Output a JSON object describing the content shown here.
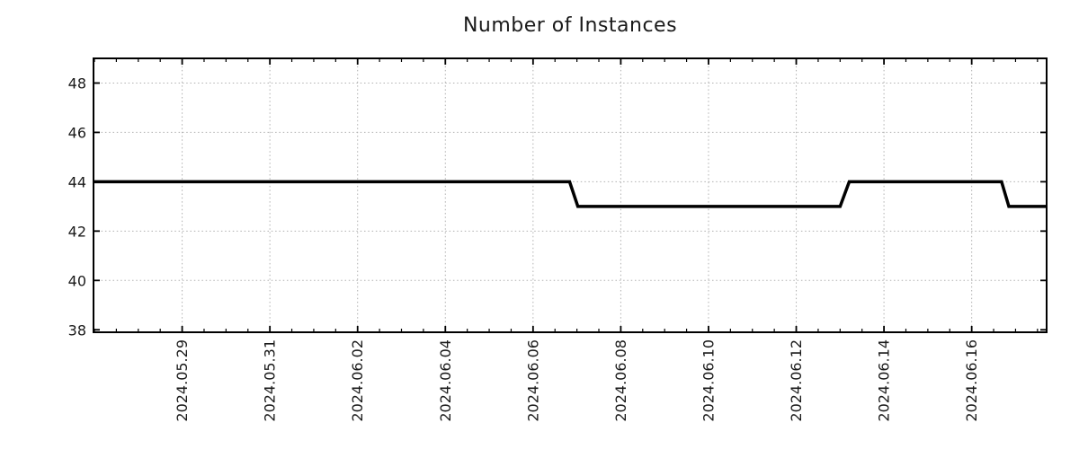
{
  "chart_data": {
    "type": "line",
    "title": "Number of Instances",
    "xlabel": "",
    "ylabel": "",
    "legend": null,
    "grid": "dotted",
    "colors": {
      "line": "#000000",
      "grid": "#b0b0b0",
      "axis": "#000000",
      "text": "#1a1a1a",
      "background": "#ffffff"
    },
    "ylim": [
      37.9,
      49.0
    ],
    "y_ticks": [
      38,
      40,
      42,
      44,
      46,
      48
    ],
    "y_gridlines": [
      40,
      42,
      44,
      46,
      48
    ],
    "xlim": [
      "2024-05-26T23:30",
      "2024-06-17T17:00"
    ],
    "x_minor_tick_hours": 12,
    "x_ticks": [
      {
        "t": "2024-05-29T00:00",
        "label": "2024.05.29"
      },
      {
        "t": "2024-05-31T00:00",
        "label": "2024.05.31"
      },
      {
        "t": "2024-06-02T00:00",
        "label": "2024.06.02"
      },
      {
        "t": "2024-06-04T00:00",
        "label": "2024.06.04"
      },
      {
        "t": "2024-06-06T00:00",
        "label": "2024.06.06"
      },
      {
        "t": "2024-06-08T00:00",
        "label": "2024.06.08"
      },
      {
        "t": "2024-06-10T00:00",
        "label": "2024.06.10"
      },
      {
        "t": "2024-06-12T00:00",
        "label": "2024.06.12"
      },
      {
        "t": "2024-06-14T00:00",
        "label": "2024.06.14"
      },
      {
        "t": "2024-06-16T00:00",
        "label": "2024.06.16"
      }
    ],
    "series": [
      {
        "name": "Number of Instances",
        "color": "#000000",
        "width": 3.5,
        "points": [
          [
            "2024-05-26T23:30",
            44
          ],
          [
            "2024-06-06T20:00",
            44
          ],
          [
            "2024-06-07T00:30",
            43
          ],
          [
            "2024-06-13T00:00",
            43
          ],
          [
            "2024-06-13T05:00",
            44
          ],
          [
            "2024-06-16T16:20",
            44
          ],
          [
            "2024-06-16T20:20",
            43
          ],
          [
            "2024-06-17T17:00",
            43
          ]
        ]
      }
    ]
  }
}
